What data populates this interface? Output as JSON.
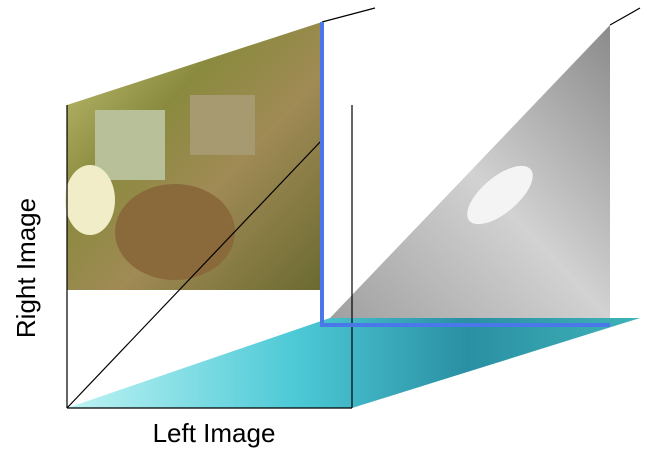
{
  "labels": {
    "y_axis": "Right Image",
    "x_axis": "Left Image"
  }
}
